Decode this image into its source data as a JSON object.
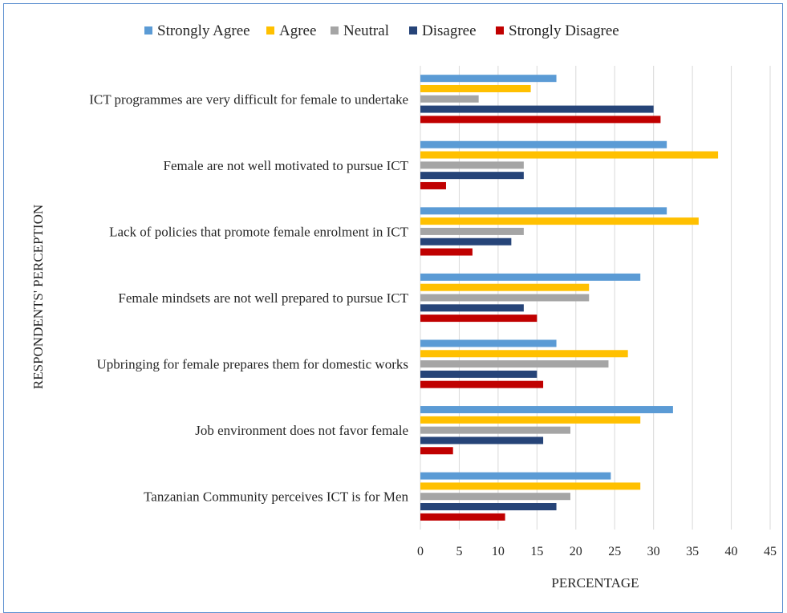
{
  "chart_data": {
    "type": "bar",
    "orientation": "horizontal",
    "categories": [
      "ICT programmes are very difficult for female to undertake",
      "Female are not well motivated to pursue ICT",
      "Lack of policies that promote female enrolment in ICT",
      "Female mindsets are not well prepared to pursue ICT",
      "Upbringing for female prepares them for domestic works",
      "Job environment does not favor female",
      "Tanzanian Community perceives ICT is for Men"
    ],
    "series": [
      {
        "name": "Strongly Agree",
        "color": "#5b9bd5",
        "values": [
          17.5,
          31.7,
          31.7,
          28.3,
          17.5,
          32.5,
          24.5
        ]
      },
      {
        "name": "Agree",
        "color": "#ffc000",
        "values": [
          14.2,
          38.3,
          35.8,
          21.7,
          26.7,
          28.3,
          28.3
        ]
      },
      {
        "name": "Neutral",
        "color": "#a5a5a5",
        "values": [
          7.5,
          13.3,
          13.3,
          21.7,
          24.2,
          19.3,
          19.3
        ]
      },
      {
        "name": "Disagree",
        "color": "#264478",
        "values": [
          30.0,
          13.3,
          11.7,
          13.3,
          15.0,
          15.8,
          17.5
        ]
      },
      {
        "name": "Strongly Disagree",
        "color": "#c00000",
        "values": [
          30.9,
          3.3,
          6.7,
          15.0,
          15.8,
          4.2,
          10.9
        ]
      }
    ],
    "title": "",
    "xlabel": "PERCENTAGE",
    "ylabel": "RESPONDENTS' PERCEPTION",
    "xlim": [
      0,
      45
    ],
    "xticks": [
      "0",
      "5",
      "10",
      "15",
      "20",
      "25",
      "30",
      "35",
      "40",
      "45"
    ],
    "grid": "vertical",
    "legend": "top"
  }
}
